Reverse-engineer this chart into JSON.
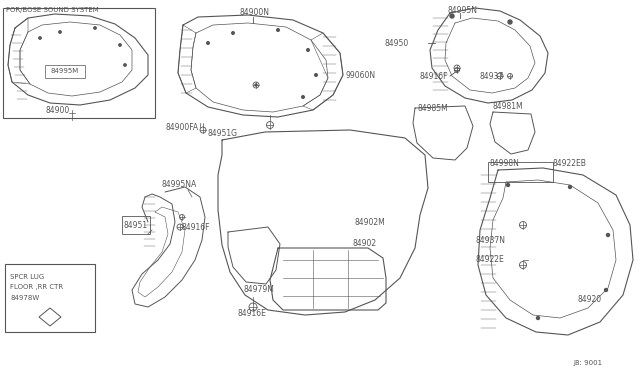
{
  "bg_color": "#ffffff",
  "line_color": "#555555",
  "diagram_id": "J8: 9001",
  "labels": {
    "FOR_BOSE": "FOR/BOSE SOUND SYSTEM",
    "SPCR_LUG_1": "SPCR LUG",
    "SPCR_LUG_2": "FLOOR ,RR CTR",
    "SPCR_LUG_3": "84978W",
    "l84900": "84900",
    "l84995M": "84995M",
    "l84900FA": "84900FA",
    "l84951G": "84951G",
    "l84900N": "84900N",
    "l99060N": "99060N",
    "l84950": "84950",
    "l84995N": "84995N",
    "l84916F_top": "84916F",
    "l84937": "84937",
    "l84985M": "84985M",
    "l84981M": "84981M",
    "l84998N": "84998N",
    "l84922EB": "84922EB",
    "l84995NA": "84995NA",
    "l84951": "84951",
    "l84916F_bot": "84916F",
    "l84979M": "84979M",
    "l84916E": "84916E",
    "l84902M": "84902M",
    "l84902": "84902",
    "l84937N": "84937N",
    "l84922E": "84922E",
    "l84920": "84920"
  }
}
